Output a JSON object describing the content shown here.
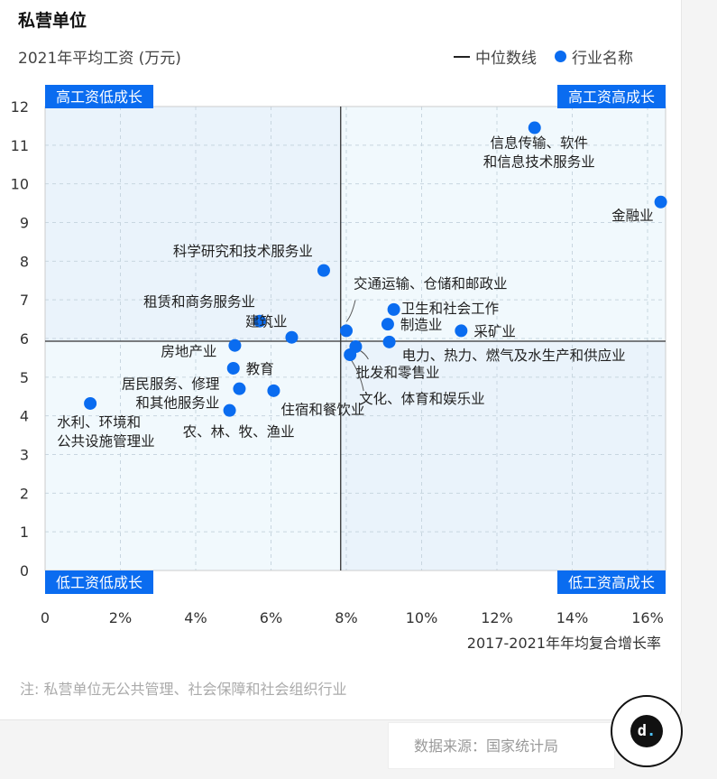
{
  "header": {
    "title": "私营单位",
    "legend_median": "中位数线",
    "legend_industry": "行业名称"
  },
  "note": "注: 私营单位无公共管理、社会保障和社会组织行业",
  "source": "数据来源：国家统计局",
  "logo_text": "dt",
  "colors": {
    "point": "#0a6cf0",
    "quadrant_label_bg": "#0a6cf0",
    "plot_bg": "#eef7fc"
  },
  "chart_data": {
    "type": "scatter",
    "ylabel": "2021年平均工资 (万元)",
    "xlabel": "2017-2021年年均复合增长率",
    "xlim": [
      0,
      16.5
    ],
    "ylim": [
      0,
      12
    ],
    "x_ticks": [
      "0",
      "2%",
      "4%",
      "6%",
      "8%",
      "10%",
      "12%",
      "14%",
      "16%"
    ],
    "y_ticks": [
      "0",
      "1",
      "2",
      "3",
      "4",
      "5",
      "6",
      "7",
      "8",
      "9",
      "10",
      "11",
      "12"
    ],
    "grid": true,
    "legend_placement": "top-right",
    "median": {
      "x": 7.85,
      "y": 5.93
    },
    "quadrants": {
      "top_left": "高工资低成长",
      "top_right": "高工资高成长",
      "bottom_left": "低工资低成长",
      "bottom_right": "低工资高成长"
    },
    "points": [
      {
        "name": "信息传输、软件\n和信息技术服务业",
        "x": 13.0,
        "y": 11.45
      },
      {
        "name": "金融业",
        "x": 16.35,
        "y": 9.53
      },
      {
        "name": "科学研究和技术服务业",
        "x": 7.4,
        "y": 7.76
      },
      {
        "name": "交通运输、仓储和邮政业",
        "x": 8.0,
        "y": 6.2
      },
      {
        "name": "卫生和社会工作",
        "x": 9.26,
        "y": 6.75
      },
      {
        "name": "制造业",
        "x": 9.1,
        "y": 6.37
      },
      {
        "name": "采矿业",
        "x": 11.05,
        "y": 6.2
      },
      {
        "name": "租赁和商务服务业",
        "x": 5.7,
        "y": 6.45
      },
      {
        "name": "建筑业",
        "x": 6.55,
        "y": 6.03
      },
      {
        "name": "房地产业",
        "x": 5.04,
        "y": 5.82
      },
      {
        "name": "教育",
        "x": 5.0,
        "y": 5.23
      },
      {
        "name": "居民服务、修理\n和其他服务业",
        "x": 5.16,
        "y": 4.7
      },
      {
        "name": "住宿和餐饮业",
        "x": 6.07,
        "y": 4.65
      },
      {
        "name": "农、林、牧、渔业",
        "x": 4.9,
        "y": 4.14
      },
      {
        "name": "水利、环境和\n公共设施管理业",
        "x": 1.2,
        "y": 4.32
      },
      {
        "name": "电力、热力、燃气及水生产和供应业",
        "x": 9.14,
        "y": 5.91
      },
      {
        "name": "批发和零售业",
        "x": 8.25,
        "y": 5.79
      },
      {
        "name": "文化、体育和娱乐业",
        "x": 8.1,
        "y": 5.58
      }
    ]
  }
}
